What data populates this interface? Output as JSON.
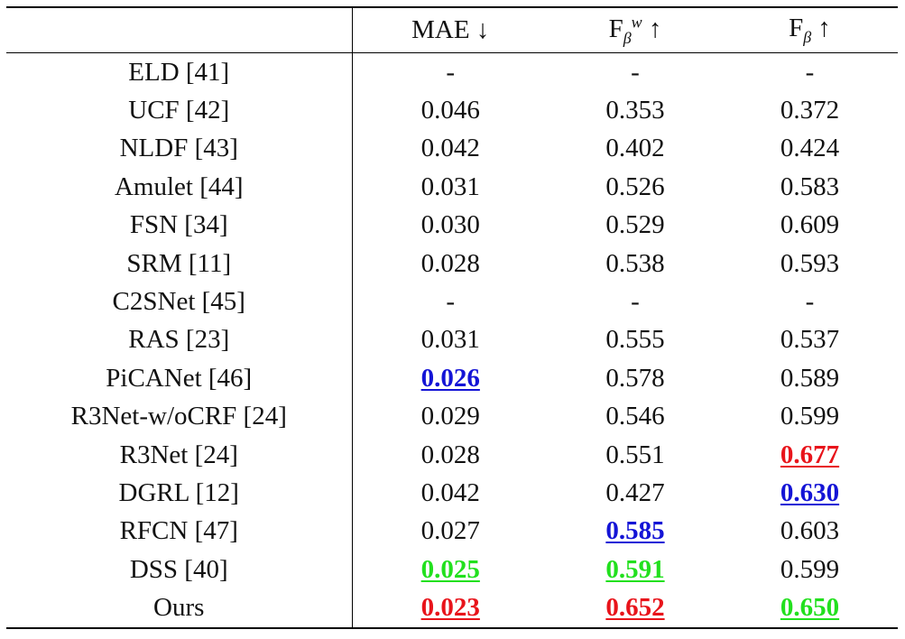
{
  "table": {
    "headers": [
      {
        "text": "",
        "key": "method"
      },
      {
        "text": "MAE ↓",
        "key": "mae"
      },
      {
        "text": "F_β^w ↑",
        "key": "fbw",
        "main": "F",
        "sub": "β",
        "sup": "w",
        "arrow": "↑"
      },
      {
        "text": "F_β ↑",
        "key": "fb",
        "main": "F",
        "sub": "β",
        "arrow": "↑"
      }
    ],
    "rows": [
      {
        "method": "ELD [41]",
        "values": [
          {
            "v": "-"
          },
          {
            "v": "-"
          },
          {
            "v": "-"
          }
        ]
      },
      {
        "method": "UCF [42]",
        "values": [
          {
            "v": "0.046"
          },
          {
            "v": "0.353"
          },
          {
            "v": "0.372"
          }
        ]
      },
      {
        "method": "NLDF [43]",
        "values": [
          {
            "v": "0.042"
          },
          {
            "v": "0.402"
          },
          {
            "v": "0.424"
          }
        ]
      },
      {
        "method": "Amulet [44]",
        "values": [
          {
            "v": "0.031"
          },
          {
            "v": "0.526"
          },
          {
            "v": "0.583"
          }
        ]
      },
      {
        "method": "FSN [34]",
        "values": [
          {
            "v": "0.030"
          },
          {
            "v": "0.529"
          },
          {
            "v": "0.609"
          }
        ]
      },
      {
        "method": "SRM [11]",
        "values": [
          {
            "v": "0.028"
          },
          {
            "v": "0.538"
          },
          {
            "v": "0.593"
          }
        ]
      },
      {
        "method": "C2SNet [45]",
        "values": [
          {
            "v": "-"
          },
          {
            "v": "-"
          },
          {
            "v": "-"
          }
        ]
      },
      {
        "method": "RAS [23]",
        "values": [
          {
            "v": "0.031"
          },
          {
            "v": "0.555"
          },
          {
            "v": "0.537"
          }
        ]
      },
      {
        "method": "PiCANet [46]",
        "values": [
          {
            "v": "0.026",
            "hl": "blue"
          },
          {
            "v": "0.578"
          },
          {
            "v": "0.589"
          }
        ]
      },
      {
        "method": "R3Net-w/oCRF [24]",
        "values": [
          {
            "v": "0.029"
          },
          {
            "v": "0.546"
          },
          {
            "v": "0.599"
          }
        ]
      },
      {
        "method": "R3Net [24]",
        "values": [
          {
            "v": "0.028"
          },
          {
            "v": "0.551"
          },
          {
            "v": "0.677",
            "hl": "red"
          }
        ]
      },
      {
        "method": "DGRL [12]",
        "values": [
          {
            "v": "0.042"
          },
          {
            "v": "0.427"
          },
          {
            "v": "0.630",
            "hl": "blue"
          }
        ]
      },
      {
        "method": "RFCN [47]",
        "values": [
          {
            "v": "0.027"
          },
          {
            "v": "0.585",
            "hl": "blue"
          },
          {
            "v": "0.603"
          }
        ]
      },
      {
        "method": "DSS [40]",
        "values": [
          {
            "v": "0.025",
            "hl": "green"
          },
          {
            "v": "0.591",
            "hl": "green"
          },
          {
            "v": "0.599"
          }
        ]
      },
      {
        "method": "Ours",
        "bold": true,
        "values": [
          {
            "v": "0.023",
            "hl": "red"
          },
          {
            "v": "0.652",
            "hl": "red"
          },
          {
            "v": "0.650",
            "hl": "green"
          }
        ]
      }
    ]
  },
  "colors": {
    "red": "#e8141b",
    "blue": "#1414d6",
    "green": "#22e01e",
    "text": "#111111",
    "rule": "#000000"
  }
}
